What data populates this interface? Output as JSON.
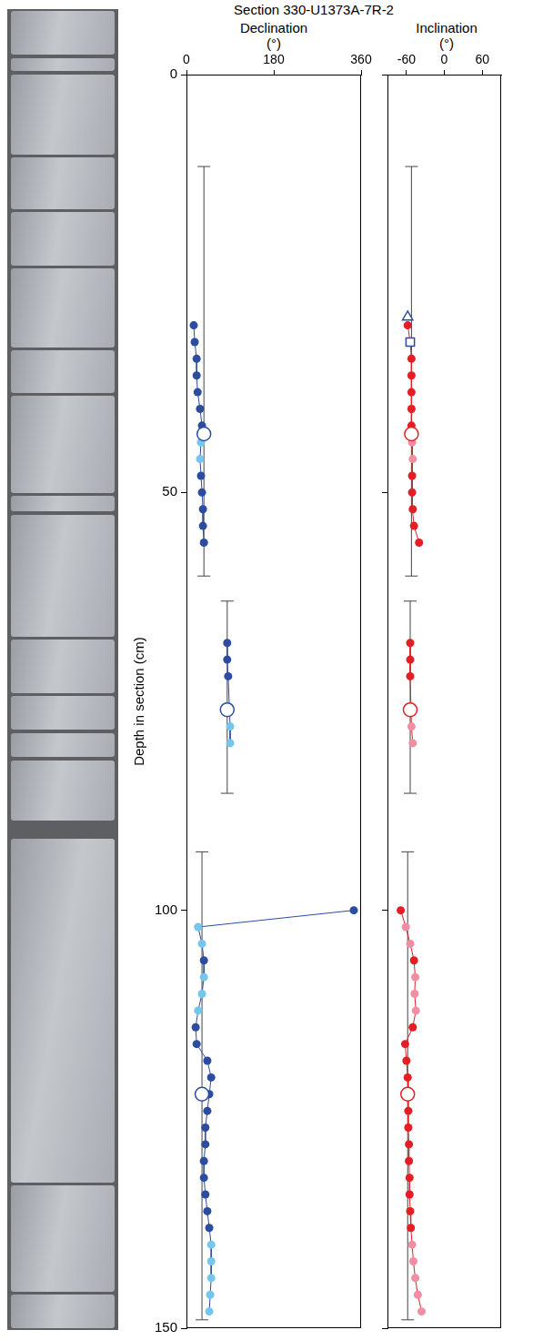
{
  "title": "Section 330-U1373A-7R-2",
  "chart_data": [
    {
      "type": "scatter",
      "x_label": "Declination (°)",
      "y_label": "Depth in section (cm)",
      "xlim": [
        0,
        360
      ],
      "xticks": [
        0,
        180,
        360
      ],
      "ylim": [
        150,
        0
      ],
      "yticks": [
        0,
        50,
        100,
        150
      ],
      "grid": false,
      "series": [
        {
          "type": "line",
          "marker": "circle",
          "color": "#2b4c9f",
          "colors": [
            "#2b4c9f",
            "#2b4c9f",
            "#2b4c9f",
            "#2b4c9f",
            "#2b4c9f",
            "#2b4c9f",
            "#2b4c9f",
            "#74c6ec",
            "#74c6ec",
            "#2b4c9f",
            "#2b4c9f",
            "#2b4c9f",
            "#2b4c9f",
            "#2b4c9f"
          ],
          "x": [
            15,
            17,
            21,
            21,
            23,
            28,
            32,
            30,
            28,
            30,
            32,
            34,
            34,
            36
          ],
          "y": [
            30,
            32,
            34,
            36,
            38,
            40,
            42,
            44,
            46,
            48,
            50,
            52,
            54,
            56
          ]
        },
        {
          "type": "line",
          "marker": "circle",
          "color": "#2b4c9f",
          "colors": [
            "#2b4c9f",
            "#2b4c9f",
            "#2b4c9f",
            "#74c6ec",
            "#74c6ec"
          ],
          "x": [
            84,
            84,
            86,
            90,
            90
          ],
          "y": [
            68,
            70,
            72,
            78,
            80
          ]
        },
        {
          "type": "line",
          "marker": "circle",
          "color": "#2b4c9f",
          "colors": [
            "#2b4c9f",
            "#74c6ec",
            "#74c6ec",
            "#2b4c9f",
            "#74c6ec",
            "#74c6ec",
            "#74c6ec",
            "#2b4c9f",
            "#2b4c9f",
            "#2b4c9f",
            "#2b4c9f",
            "#2b4c9f",
            "#2b4c9f",
            "#2b4c9f",
            "#2b4c9f",
            "#2b4c9f",
            "#2b4c9f",
            "#2b4c9f",
            "#2b4c9f",
            "#2b4c9f",
            "#74c6ec",
            "#74c6ec",
            "#74c6ec",
            "#74c6ec",
            "#74c6ec"
          ],
          "x": [
            345,
            24,
            32,
            36,
            36,
            32,
            24,
            19,
            21,
            43,
            51,
            47,
            43,
            39,
            39,
            36,
            36,
            39,
            43,
            47,
            51,
            51,
            51,
            49,
            47
          ],
          "y": [
            100,
            102,
            104,
            106,
            108,
            110,
            112,
            114,
            116,
            118,
            120,
            122,
            124,
            126,
            128,
            130,
            132,
            134,
            136,
            138,
            140,
            142,
            144,
            146,
            148
          ]
        },
        {
          "type": "scatter",
          "marker": "open_circle",
          "color": "#2b4c9f",
          "x": [
            36,
            84,
            32
          ],
          "y": [
            43,
            76,
            122
          ],
          "depth_range": [
            [
              11,
              60
            ],
            [
              63,
              86
            ],
            [
              93,
              149
            ]
          ]
        }
      ]
    },
    {
      "type": "scatter",
      "x_label": "Inclination (°)",
      "xlim": [
        -90,
        90
      ],
      "xticks": [
        -60,
        0,
        60
      ],
      "ylim": [
        150,
        0
      ],
      "yticks": [
        0,
        50,
        100,
        150
      ],
      "grid": false,
      "tick_labels": "x",
      "series": [
        {
          "type": "line",
          "marker": "circle",
          "color": "#e31e24",
          "colors": [
            "#e31e24",
            "#e31e24",
            "#e31e24",
            "#e31e24",
            "#e31e24",
            "#e31e24",
            "#e31e24",
            "#f28ea3",
            "#f28ea3",
            "#e31e24",
            "#e31e24",
            "#e31e24",
            "#e31e24",
            "#e31e24"
          ],
          "x": [
            -58,
            -54,
            -52,
            -52,
            -52,
            -52,
            -52,
            -51,
            -50,
            -51,
            -51,
            -50,
            -48,
            -40
          ],
          "y": [
            30,
            32,
            34,
            36,
            38,
            40,
            42,
            44,
            46,
            48,
            50,
            52,
            54,
            56
          ]
        },
        {
          "type": "line",
          "marker": "circle",
          "color": "#e31e24",
          "colors": [
            "#e31e24",
            "#e31e24",
            "#e31e24",
            "#f28ea3",
            "#f28ea3"
          ],
          "x": [
            -54,
            -54,
            -54,
            -52,
            -50
          ],
          "y": [
            68,
            70,
            72,
            78,
            80
          ]
        },
        {
          "type": "line",
          "marker": "circle",
          "color": "#e31e24",
          "colors": [
            "#e31e24",
            "#f28ea3",
            "#f28ea3",
            "#e31e24",
            "#f28ea3",
            "#f28ea3",
            "#f28ea3",
            "#e31e24",
            "#e31e24",
            "#e31e24",
            "#e31e24",
            "#e31e24",
            "#e31e24",
            "#e31e24",
            "#e31e24",
            "#e31e24",
            "#e31e24",
            "#e31e24",
            "#e31e24",
            "#e31e24",
            "#f28ea3",
            "#f28ea3",
            "#f28ea3",
            "#f28ea3",
            "#f28ea3"
          ],
          "x": [
            -69,
            -61,
            -54,
            -48,
            -46,
            -47,
            -45,
            -50,
            -62,
            -60,
            -58,
            -57,
            -57,
            -57,
            -56,
            -56,
            -55,
            -55,
            -54,
            -53,
            -51,
            -49,
            -46,
            -42,
            -36
          ],
          "y": [
            100,
            102,
            104,
            106,
            108,
            110,
            112,
            114,
            116,
            118,
            120,
            122,
            124,
            126,
            128,
            130,
            132,
            134,
            136,
            138,
            140,
            142,
            144,
            146,
            148
          ]
        },
        {
          "type": "scatter",
          "marker": "open_circle",
          "color": "#e31e24",
          "x": [
            -52,
            -54,
            -58
          ],
          "y": [
            43,
            76,
            122
          ],
          "depth_range": [
            [
              11,
              60
            ],
            [
              63,
              86
            ],
            [
              93,
              149
            ]
          ]
        },
        {
          "type": "scatter",
          "marker": "open_triangle",
          "color": "#2b4c9f",
          "x": [
            -58
          ],
          "y": [
            29
          ]
        },
        {
          "type": "scatter",
          "marker": "open_square",
          "color": "#2b4c9f",
          "x": [
            -54
          ],
          "y": [
            32
          ]
        }
      ]
    }
  ]
}
